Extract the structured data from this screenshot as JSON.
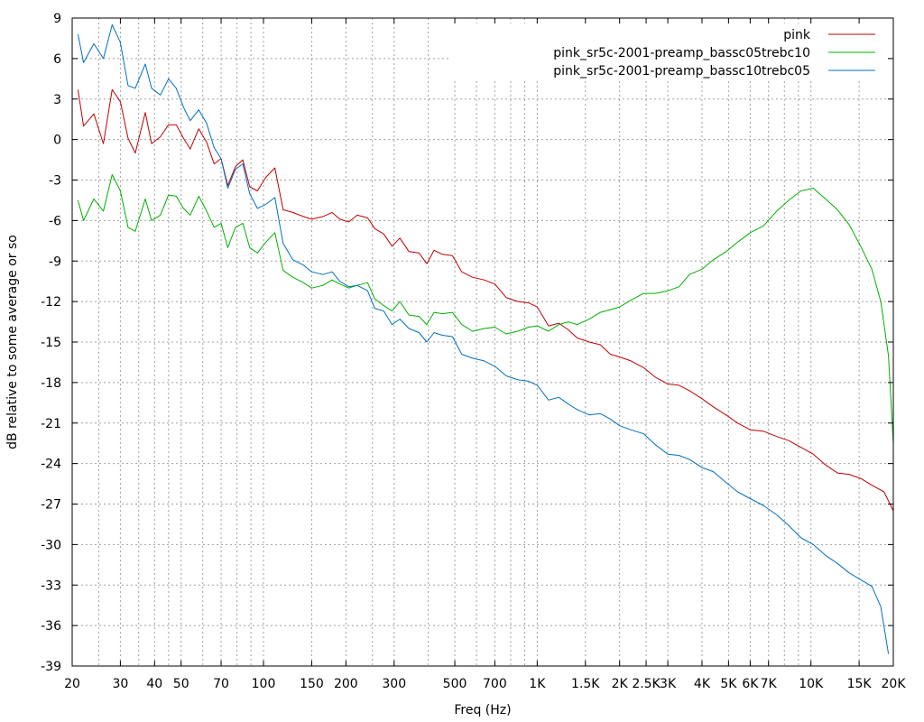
{
  "chart_data": {
    "type": "line",
    "title": "",
    "xlabel": "Freq (Hz)",
    "ylabel": "dB relative to some average or so",
    "x_scale": "log",
    "xlim": [
      20,
      20000
    ],
    "ylim": [
      -39,
      9
    ],
    "grid": true,
    "legend_position": "top-right",
    "x_ticks": [
      {
        "value": 20,
        "label": "20"
      },
      {
        "value": 30,
        "label": "30"
      },
      {
        "value": 40,
        "label": "40"
      },
      {
        "value": 50,
        "label": "50"
      },
      {
        "value": 70,
        "label": "70"
      },
      {
        "value": 100,
        "label": "100"
      },
      {
        "value": 150,
        "label": "150"
      },
      {
        "value": 200,
        "label": "200"
      },
      {
        "value": 300,
        "label": "300"
      },
      {
        "value": 500,
        "label": "500"
      },
      {
        "value": 700,
        "label": "700"
      },
      {
        "value": 1000,
        "label": "1K"
      },
      {
        "value": 1500,
        "label": "1.5K"
      },
      {
        "value": 2000,
        "label": "2K"
      },
      {
        "value": 2500,
        "label": "2.5K"
      },
      {
        "value": 3000,
        "label": "3K"
      },
      {
        "value": 4000,
        "label": "4K"
      },
      {
        "value": 5000,
        "label": "5K"
      },
      {
        "value": 6000,
        "label": "6K"
      },
      {
        "value": 7000,
        "label": "7K"
      },
      {
        "value": 10000,
        "label": "10K"
      },
      {
        "value": 15000,
        "label": "15K"
      },
      {
        "value": 20000,
        "label": "20K"
      }
    ],
    "x_grid": [
      20,
      25,
      30,
      35,
      40,
      45,
      50,
      60,
      70,
      80,
      90,
      100,
      150,
      200,
      250,
      300,
      400,
      500,
      600,
      700,
      800,
      900,
      1000,
      1500,
      2000,
      2500,
      3000,
      4000,
      5000,
      6000,
      7000,
      8000,
      9000,
      10000,
      15000,
      20000
    ],
    "y_ticks": [
      9,
      6,
      3,
      0,
      -3,
      -6,
      -9,
      -12,
      -15,
      -18,
      -21,
      -24,
      -27,
      -30,
      -33,
      -36,
      -39
    ],
    "series": [
      {
        "name": "pink",
        "color": "#c00000",
        "points": [
          [
            21,
            3.7
          ],
          [
            22,
            1.0
          ],
          [
            24,
            1.9
          ],
          [
            26,
            -0.3
          ],
          [
            28,
            3.7
          ],
          [
            30,
            2.8
          ],
          [
            32,
            0.1
          ],
          [
            34,
            -1.0
          ],
          [
            37,
            2.0
          ],
          [
            39,
            -0.3
          ],
          [
            42,
            0.2
          ],
          [
            45,
            1.1
          ],
          [
            48,
            1.1
          ],
          [
            51,
            0.1
          ],
          [
            54,
            -0.7
          ],
          [
            58,
            0.8
          ],
          [
            62,
            -0.2
          ],
          [
            66,
            -1.8
          ],
          [
            70,
            -1.4
          ],
          [
            74,
            -3.4
          ],
          [
            79,
            -2.0
          ],
          [
            84,
            -1.5
          ],
          [
            89,
            -3.5
          ],
          [
            95,
            -3.8
          ],
          [
            102,
            -2.8
          ],
          [
            110,
            -2.1
          ],
          [
            118,
            -5.2
          ],
          [
            128,
            -5.4
          ],
          [
            140,
            -5.7
          ],
          [
            150,
            -5.9
          ],
          [
            165,
            -5.7
          ],
          [
            178,
            -5.4
          ],
          [
            190,
            -5.9
          ],
          [
            205,
            -6.1
          ],
          [
            220,
            -5.6
          ],
          [
            240,
            -5.8
          ],
          [
            255,
            -6.6
          ],
          [
            275,
            -7.0
          ],
          [
            295,
            -7.9
          ],
          [
            315,
            -7.3
          ],
          [
            340,
            -8.3
          ],
          [
            370,
            -8.4
          ],
          [
            395,
            -9.2
          ],
          [
            420,
            -8.2
          ],
          [
            450,
            -8.5
          ],
          [
            490,
            -8.6
          ],
          [
            530,
            -9.8
          ],
          [
            580,
            -10.2
          ],
          [
            640,
            -10.4
          ],
          [
            700,
            -10.7
          ],
          [
            770,
            -11.7
          ],
          [
            850,
            -12.0
          ],
          [
            930,
            -12.1
          ],
          [
            1000,
            -12.4
          ],
          [
            1100,
            -13.8
          ],
          [
            1200,
            -13.6
          ],
          [
            1300,
            -14.1
          ],
          [
            1400,
            -14.7
          ],
          [
            1550,
            -15.0
          ],
          [
            1700,
            -15.2
          ],
          [
            1850,
            -15.9
          ],
          [
            2000,
            -16.1
          ],
          [
            2200,
            -16.4
          ],
          [
            2450,
            -16.9
          ],
          [
            2700,
            -17.6
          ],
          [
            3000,
            -18.1
          ],
          [
            3300,
            -18.2
          ],
          [
            3600,
            -18.6
          ],
          [
            4000,
            -19.2
          ],
          [
            4400,
            -19.8
          ],
          [
            4900,
            -20.4
          ],
          [
            5400,
            -21.0
          ],
          [
            6000,
            -21.5
          ],
          [
            6700,
            -21.6
          ],
          [
            7500,
            -22.0
          ],
          [
            8300,
            -22.3
          ],
          [
            9200,
            -22.8
          ],
          [
            10200,
            -23.3
          ],
          [
            11300,
            -24.1
          ],
          [
            12500,
            -24.7
          ],
          [
            13800,
            -24.8
          ],
          [
            15200,
            -25.1
          ],
          [
            16700,
            -25.6
          ],
          [
            18500,
            -26.1
          ],
          [
            20000,
            -27.5
          ]
        ]
      },
      {
        "name": "pink_sr5c-2001-preamp_bassc05trebc10",
        "color": "#00b000",
        "points": [
          [
            21,
            -4.5
          ],
          [
            22,
            -6.0
          ],
          [
            24,
            -4.4
          ],
          [
            26,
            -5.3
          ],
          [
            28,
            -2.6
          ],
          [
            30,
            -3.8
          ],
          [
            32,
            -6.5
          ],
          [
            34,
            -6.8
          ],
          [
            37,
            -4.4
          ],
          [
            39,
            -6.0
          ],
          [
            42,
            -5.6
          ],
          [
            45,
            -4.1
          ],
          [
            48,
            -4.2
          ],
          [
            51,
            -5.1
          ],
          [
            54,
            -5.6
          ],
          [
            58,
            -4.2
          ],
          [
            62,
            -5.3
          ],
          [
            66,
            -6.5
          ],
          [
            70,
            -6.2
          ],
          [
            74,
            -8.0
          ],
          [
            79,
            -6.5
          ],
          [
            84,
            -6.2
          ],
          [
            89,
            -8.0
          ],
          [
            95,
            -8.4
          ],
          [
            102,
            -7.6
          ],
          [
            110,
            -6.9
          ],
          [
            118,
            -9.7
          ],
          [
            128,
            -10.2
          ],
          [
            140,
            -10.6
          ],
          [
            150,
            -11.0
          ],
          [
            165,
            -10.8
          ],
          [
            178,
            -10.4
          ],
          [
            190,
            -10.7
          ],
          [
            205,
            -11.0
          ],
          [
            220,
            -10.8
          ],
          [
            240,
            -10.6
          ],
          [
            255,
            -11.8
          ],
          [
            275,
            -12.3
          ],
          [
            295,
            -12.7
          ],
          [
            315,
            -12.0
          ],
          [
            340,
            -13.0
          ],
          [
            370,
            -13.1
          ],
          [
            395,
            -13.7
          ],
          [
            420,
            -12.8
          ],
          [
            450,
            -12.9
          ],
          [
            490,
            -12.8
          ],
          [
            530,
            -13.7
          ],
          [
            580,
            -14.2
          ],
          [
            640,
            -14.0
          ],
          [
            700,
            -13.9
          ],
          [
            770,
            -14.4
          ],
          [
            850,
            -14.2
          ],
          [
            930,
            -13.9
          ],
          [
            1000,
            -13.8
          ],
          [
            1100,
            -14.2
          ],
          [
            1200,
            -13.7
          ],
          [
            1300,
            -13.5
          ],
          [
            1400,
            -13.7
          ],
          [
            1550,
            -13.3
          ],
          [
            1700,
            -12.8
          ],
          [
            1850,
            -12.6
          ],
          [
            2000,
            -12.4
          ],
          [
            2200,
            -11.9
          ],
          [
            2450,
            -11.4
          ],
          [
            2700,
            -11.4
          ],
          [
            3000,
            -11.2
          ],
          [
            3300,
            -10.9
          ],
          [
            3600,
            -10.0
          ],
          [
            4000,
            -9.6
          ],
          [
            4400,
            -8.9
          ],
          [
            4900,
            -8.3
          ],
          [
            5400,
            -7.6
          ],
          [
            6000,
            -6.9
          ],
          [
            6700,
            -6.4
          ],
          [
            7500,
            -5.3
          ],
          [
            8300,
            -4.5
          ],
          [
            9200,
            -3.8
          ],
          [
            10200,
            -3.6
          ],
          [
            11300,
            -4.4
          ],
          [
            12500,
            -5.2
          ],
          [
            13800,
            -6.3
          ],
          [
            15200,
            -7.9
          ],
          [
            16700,
            -9.6
          ],
          [
            18000,
            -12.0
          ],
          [
            19200,
            -16.0
          ],
          [
            20000,
            -22.5
          ]
        ]
      },
      {
        "name": "pink_sr5c-2001-preamp_bassc10trebc05",
        "color": "#0070c0",
        "points": [
          [
            21,
            7.8
          ],
          [
            22,
            5.7
          ],
          [
            24,
            7.1
          ],
          [
            26,
            6.0
          ],
          [
            28,
            8.5
          ],
          [
            30,
            7.2
          ],
          [
            32,
            4.0
          ],
          [
            34,
            3.8
          ],
          [
            37,
            5.6
          ],
          [
            39,
            3.8
          ],
          [
            42,
            3.3
          ],
          [
            45,
            4.5
          ],
          [
            48,
            3.8
          ],
          [
            51,
            2.4
          ],
          [
            54,
            1.4
          ],
          [
            58,
            2.2
          ],
          [
            62,
            1.2
          ],
          [
            66,
            -0.6
          ],
          [
            70,
            -1.4
          ],
          [
            74,
            -3.6
          ],
          [
            79,
            -2.2
          ],
          [
            84,
            -1.8
          ],
          [
            89,
            -4.0
          ],
          [
            95,
            -5.1
          ],
          [
            102,
            -4.8
          ],
          [
            110,
            -4.3
          ],
          [
            118,
            -7.7
          ],
          [
            128,
            -8.9
          ],
          [
            140,
            -9.3
          ],
          [
            150,
            -9.8
          ],
          [
            165,
            -10.0
          ],
          [
            178,
            -9.8
          ],
          [
            190,
            -10.5
          ],
          [
            205,
            -10.9
          ],
          [
            220,
            -10.8
          ],
          [
            240,
            -11.2
          ],
          [
            255,
            -12.5
          ],
          [
            275,
            -12.7
          ],
          [
            295,
            -13.7
          ],
          [
            315,
            -13.3
          ],
          [
            340,
            -14.0
          ],
          [
            370,
            -14.3
          ],
          [
            395,
            -15.0
          ],
          [
            420,
            -14.3
          ],
          [
            450,
            -14.5
          ],
          [
            490,
            -14.6
          ],
          [
            530,
            -15.9
          ],
          [
            580,
            -16.2
          ],
          [
            640,
            -16.4
          ],
          [
            700,
            -16.8
          ],
          [
            770,
            -17.5
          ],
          [
            850,
            -17.8
          ],
          [
            930,
            -17.9
          ],
          [
            1000,
            -18.2
          ],
          [
            1100,
            -19.3
          ],
          [
            1200,
            -19.1
          ],
          [
            1300,
            -19.6
          ],
          [
            1400,
            -20.0
          ],
          [
            1550,
            -20.4
          ],
          [
            1700,
            -20.3
          ],
          [
            1850,
            -20.7
          ],
          [
            2000,
            -21.2
          ],
          [
            2200,
            -21.5
          ],
          [
            2450,
            -21.8
          ],
          [
            2700,
            -22.6
          ],
          [
            3000,
            -23.3
          ],
          [
            3300,
            -23.4
          ],
          [
            3600,
            -23.7
          ],
          [
            4000,
            -24.3
          ],
          [
            4400,
            -24.6
          ],
          [
            4900,
            -25.4
          ],
          [
            5400,
            -26.1
          ],
          [
            6000,
            -26.6
          ],
          [
            6700,
            -27.1
          ],
          [
            7500,
            -27.8
          ],
          [
            8300,
            -28.6
          ],
          [
            9200,
            -29.5
          ],
          [
            10200,
            -30.0
          ],
          [
            11300,
            -30.8
          ],
          [
            12500,
            -31.4
          ],
          [
            13800,
            -32.1
          ],
          [
            15200,
            -32.6
          ],
          [
            16700,
            -33.1
          ],
          [
            18000,
            -34.6
          ],
          [
            19200,
            -38.1
          ]
        ]
      }
    ]
  }
}
